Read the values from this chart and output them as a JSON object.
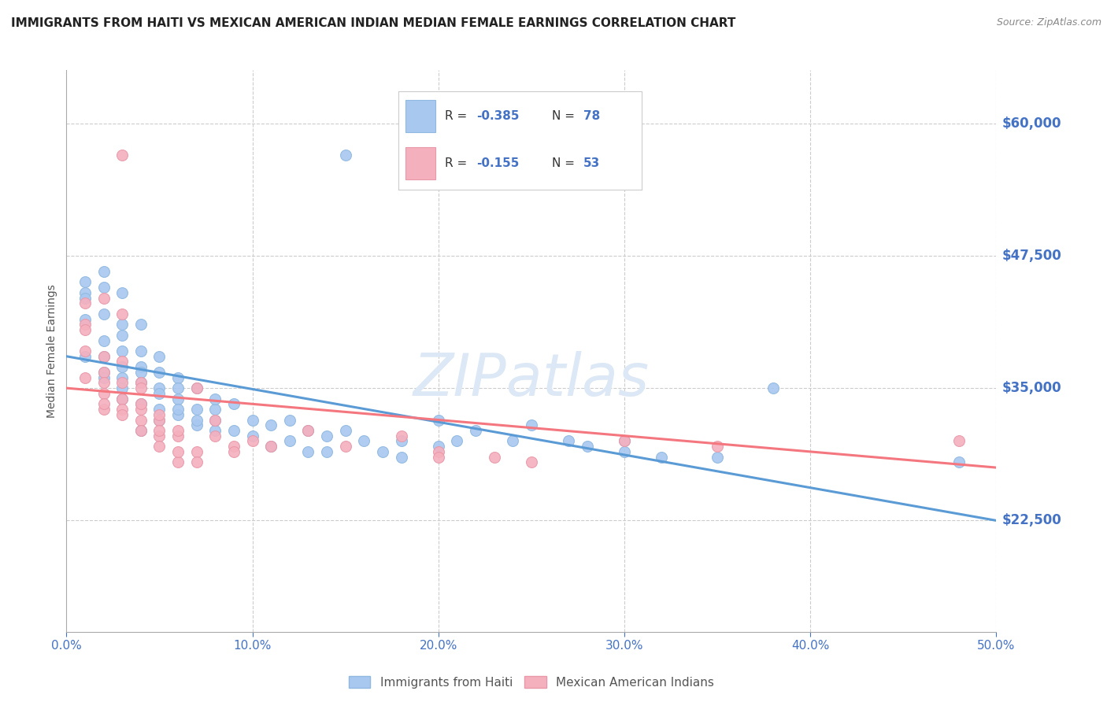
{
  "title": "IMMIGRANTS FROM HAITI VS MEXICAN AMERICAN INDIAN MEDIAN FEMALE EARNINGS CORRELATION CHART",
  "source": "Source: ZipAtlas.com",
  "ylabel": "Median Female Earnings",
  "xlim": [
    0.0,
    0.5
  ],
  "ylim": [
    12000,
    65000
  ],
  "xtick_vals": [
    0.0,
    0.1,
    0.2,
    0.3,
    0.4,
    0.5
  ],
  "xtick_labels": [
    "0.0%",
    "10.0%",
    "20.0%",
    "30.0%",
    "40.0%",
    "50.0%"
  ],
  "ytick_vals": [
    22500,
    35000,
    47500,
    60000
  ],
  "ytick_labels": [
    "$22,500",
    "$35,000",
    "$47,500",
    "$60,000"
  ],
  "legend_label1": "Immigrants from Haiti",
  "legend_label2": "Mexican American Indians",
  "blue_color": "#5b9bd5",
  "pink_color": "#f4777f",
  "blue_scatter_color": "#a8c8f0",
  "pink_scatter_color": "#f5b0be",
  "watermark": "ZIPatlas",
  "blue_line": {
    "x0": 0.0,
    "y0": 38000,
    "x1": 0.5,
    "y1": 22500
  },
  "pink_line": {
    "x0": 0.0,
    "y0": 35000,
    "x1": 0.5,
    "y1": 27500
  },
  "blue_points": [
    [
      0.01,
      44000
    ],
    [
      0.01,
      41500
    ],
    [
      0.01,
      43500
    ],
    [
      0.01,
      45000
    ],
    [
      0.01,
      38000
    ],
    [
      0.02,
      39500
    ],
    [
      0.02,
      42000
    ],
    [
      0.02,
      46000
    ],
    [
      0.02,
      36500
    ],
    [
      0.02,
      44500
    ],
    [
      0.02,
      38000
    ],
    [
      0.02,
      36000
    ],
    [
      0.03,
      41000
    ],
    [
      0.03,
      44000
    ],
    [
      0.03,
      37000
    ],
    [
      0.03,
      35000
    ],
    [
      0.03,
      40000
    ],
    [
      0.03,
      38500
    ],
    [
      0.03,
      36000
    ],
    [
      0.03,
      34000
    ],
    [
      0.04,
      37000
    ],
    [
      0.04,
      35500
    ],
    [
      0.04,
      33500
    ],
    [
      0.04,
      38500
    ],
    [
      0.04,
      36500
    ],
    [
      0.04,
      41000
    ],
    [
      0.04,
      31000
    ],
    [
      0.05,
      35000
    ],
    [
      0.05,
      33000
    ],
    [
      0.05,
      36500
    ],
    [
      0.05,
      34500
    ],
    [
      0.05,
      38000
    ],
    [
      0.05,
      32000
    ],
    [
      0.06,
      34000
    ],
    [
      0.06,
      32500
    ],
    [
      0.06,
      36000
    ],
    [
      0.06,
      35000
    ],
    [
      0.06,
      33000
    ],
    [
      0.07,
      33000
    ],
    [
      0.07,
      31500
    ],
    [
      0.07,
      35000
    ],
    [
      0.07,
      32000
    ],
    [
      0.08,
      31000
    ],
    [
      0.08,
      33000
    ],
    [
      0.08,
      34000
    ],
    [
      0.08,
      32000
    ],
    [
      0.09,
      33500
    ],
    [
      0.09,
      31000
    ],
    [
      0.1,
      32000
    ],
    [
      0.1,
      30500
    ],
    [
      0.11,
      31500
    ],
    [
      0.11,
      29500
    ],
    [
      0.12,
      32000
    ],
    [
      0.12,
      30000
    ],
    [
      0.13,
      31000
    ],
    [
      0.13,
      29000
    ],
    [
      0.14,
      30500
    ],
    [
      0.14,
      29000
    ],
    [
      0.15,
      57000
    ],
    [
      0.15,
      31000
    ],
    [
      0.16,
      30000
    ],
    [
      0.17,
      29000
    ],
    [
      0.18,
      30000
    ],
    [
      0.18,
      28500
    ],
    [
      0.2,
      29500
    ],
    [
      0.2,
      32000
    ],
    [
      0.21,
      30000
    ],
    [
      0.22,
      31000
    ],
    [
      0.24,
      30000
    ],
    [
      0.25,
      31500
    ],
    [
      0.27,
      30000
    ],
    [
      0.28,
      29500
    ],
    [
      0.3,
      30000
    ],
    [
      0.3,
      29000
    ],
    [
      0.32,
      28500
    ],
    [
      0.35,
      28500
    ],
    [
      0.38,
      35000
    ],
    [
      0.48,
      28000
    ]
  ],
  "pink_points": [
    [
      0.01,
      43000
    ],
    [
      0.01,
      38500
    ],
    [
      0.01,
      41000
    ],
    [
      0.01,
      36000
    ],
    [
      0.01,
      40500
    ],
    [
      0.02,
      43500
    ],
    [
      0.02,
      38000
    ],
    [
      0.02,
      36500
    ],
    [
      0.02,
      34500
    ],
    [
      0.02,
      33000
    ],
    [
      0.02,
      35500
    ],
    [
      0.02,
      33500
    ],
    [
      0.03,
      42000
    ],
    [
      0.03,
      37500
    ],
    [
      0.03,
      35500
    ],
    [
      0.03,
      34000
    ],
    [
      0.03,
      33000
    ],
    [
      0.03,
      32500
    ],
    [
      0.03,
      57000
    ],
    [
      0.04,
      35500
    ],
    [
      0.04,
      33000
    ],
    [
      0.04,
      32000
    ],
    [
      0.04,
      31000
    ],
    [
      0.04,
      35000
    ],
    [
      0.04,
      33500
    ],
    [
      0.05,
      32000
    ],
    [
      0.05,
      30500
    ],
    [
      0.05,
      32500
    ],
    [
      0.05,
      31000
    ],
    [
      0.05,
      29500
    ],
    [
      0.06,
      28000
    ],
    [
      0.06,
      30500
    ],
    [
      0.06,
      31000
    ],
    [
      0.06,
      29000
    ],
    [
      0.07,
      29000
    ],
    [
      0.07,
      28000
    ],
    [
      0.07,
      35000
    ],
    [
      0.08,
      32000
    ],
    [
      0.08,
      30500
    ],
    [
      0.09,
      29500
    ],
    [
      0.09,
      29000
    ],
    [
      0.1,
      30000
    ],
    [
      0.11,
      29500
    ],
    [
      0.13,
      31000
    ],
    [
      0.15,
      29500
    ],
    [
      0.18,
      30500
    ],
    [
      0.2,
      29000
    ],
    [
      0.2,
      28500
    ],
    [
      0.23,
      28500
    ],
    [
      0.25,
      28000
    ],
    [
      0.3,
      30000
    ],
    [
      0.35,
      29500
    ],
    [
      0.48,
      30000
    ]
  ],
  "background_color": "#ffffff",
  "grid_color": "#cccccc",
  "title_color": "#222222",
  "ytick_right_color": "#4472c4",
  "watermark_color": "#dce8f5"
}
